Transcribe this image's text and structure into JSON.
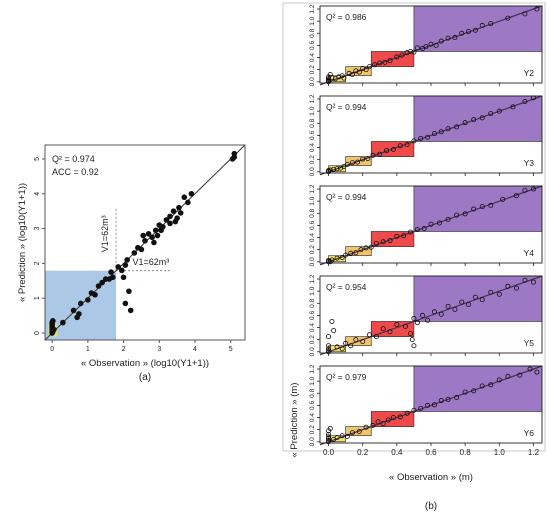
{
  "palette": {
    "blue_box": "#8fb6dd",
    "yellow_box": "#f2e266",
    "orange_box": "#f1c46a",
    "red_box": "#ee4a4a",
    "purple_box": "#9d78c4",
    "line": "#4a2f55",
    "frame": "#555555"
  },
  "chart_data": [
    {
      "type": "scatter",
      "panel": "(a)",
      "xlabel": "« Observation » (log10(Y1+1))",
      "ylabel": "« Prediction » (log10(Y1+1))",
      "xlim": [
        -0.2,
        5.4
      ],
      "ylim": [
        -0.2,
        5.4
      ],
      "xticks": [
        0,
        1,
        2,
        3,
        4,
        5
      ],
      "yticks": [
        0,
        1,
        2,
        3,
        4,
        5
      ],
      "stats": [
        "Q² = 0.974",
        "ACC = 0.92"
      ],
      "threshold": {
        "value": 1.79,
        "label_x": "V1=62m³",
        "label_y": "V1=62m³"
      },
      "series": [
        {
          "values": [
            [
              0,
              0
            ],
            [
              0,
              0.05
            ],
            [
              0,
              0.1
            ],
            [
              0,
              0.15
            ],
            [
              0,
              0.2
            ],
            [
              0,
              0.25
            ],
            [
              0,
              0.3
            ],
            [
              0.02,
              0.05
            ],
            [
              0.05,
              0.1
            ],
            [
              0.02,
              0.35
            ],
            [
              0.3,
              0.3
            ],
            [
              0.6,
              0.65
            ],
            [
              0.8,
              0.85
            ],
            [
              0.7,
              0.45
            ],
            [
              0.75,
              0.55
            ],
            [
              1.0,
              0.95
            ],
            [
              1.1,
              1.15
            ],
            [
              1.2,
              1.1
            ],
            [
              1.3,
              1.35
            ],
            [
              1.4,
              1.45
            ],
            [
              1.5,
              1.55
            ],
            [
              1.6,
              1.55
            ],
            [
              1.7,
              1.6
            ],
            [
              1.65,
              1.75
            ],
            [
              1.85,
              1.9
            ],
            [
              1.95,
              1.8
            ],
            [
              2.0,
              1.6
            ],
            [
              2.05,
              1.95
            ],
            [
              2.1,
              2.1
            ],
            [
              2.15,
              1.2
            ],
            [
              2.05,
              0.85
            ],
            [
              2.2,
              0.65
            ],
            [
              2.3,
              2.3
            ],
            [
              2.4,
              2.45
            ],
            [
              2.5,
              2.4
            ],
            [
              2.6,
              2.65
            ],
            [
              2.55,
              2.8
            ],
            [
              2.7,
              2.85
            ],
            [
              2.8,
              2.75
            ],
            [
              2.85,
              2.6
            ],
            [
              2.9,
              2.95
            ],
            [
              3.0,
              3.1
            ],
            [
              3.05,
              2.95
            ],
            [
              3.1,
              3.05
            ],
            [
              3.2,
              3.25
            ],
            [
              3.3,
              3.15
            ],
            [
              3.3,
              3.35
            ],
            [
              3.4,
              3.5
            ],
            [
              3.45,
              3.2
            ],
            [
              3.55,
              3.6
            ],
            [
              3.6,
              3.45
            ],
            [
              3.7,
              3.9
            ],
            [
              3.8,
              3.75
            ],
            [
              3.9,
              4.0
            ],
            [
              3.5,
              3.3
            ],
            [
              2.95,
              2.8
            ],
            [
              5.05,
              5.0
            ],
            [
              5.1,
              5.15
            ],
            [
              5.1,
              5.05
            ]
          ]
        }
      ]
    },
    {
      "type": "scatter",
      "panel": "(b)",
      "xlabel": "« Observation » (m)",
      "ylabel": "« Prediction » (m)",
      "xlim": [
        -0.05,
        1.25
      ],
      "ylim": [
        -0.02,
        1.25
      ],
      "xticks": [
        "0.0",
        "0.2",
        "0.4",
        "0.6",
        "0.8",
        "1.0",
        "1.2"
      ],
      "yticks": [
        "0.0",
        "0.2",
        "0.4",
        "0.6",
        "0.8",
        "1.0",
        "1.2"
      ],
      "class_bounds": [
        0,
        0.1,
        0.25,
        0.5
      ],
      "panels": [
        {
          "name": "Y2",
          "stat": "Q² = 0.986",
          "points": [
            [
              0,
              0
            ],
            [
              0,
              0.01
            ],
            [
              0,
              0.02
            ],
            [
              0,
              0.03
            ],
            [
              0,
              0.05
            ],
            [
              0,
              0.08
            ],
            [
              0.01,
              0.12
            ],
            [
              0.02,
              0.07
            ],
            [
              0.04,
              0.05
            ],
            [
              0.06,
              0.08
            ],
            [
              0.08,
              0.1
            ],
            [
              0.09,
              0.06
            ],
            [
              0.12,
              0.14
            ],
            [
              0.14,
              0.12
            ],
            [
              0.16,
              0.18
            ],
            [
              0.18,
              0.16
            ],
            [
              0.2,
              0.22
            ],
            [
              0.22,
              0.2
            ],
            [
              0.24,
              0.25
            ],
            [
              0.27,
              0.28
            ],
            [
              0.3,
              0.31
            ],
            [
              0.33,
              0.32
            ],
            [
              0.36,
              0.35
            ],
            [
              0.4,
              0.41
            ],
            [
              0.43,
              0.44
            ],
            [
              0.46,
              0.48
            ],
            [
              0.48,
              0.5
            ],
            [
              0.5,
              0.49
            ],
            [
              0.52,
              0.56
            ],
            [
              0.55,
              0.55
            ],
            [
              0.57,
              0.58
            ],
            [
              0.6,
              0.62
            ],
            [
              0.63,
              0.6
            ],
            [
              0.66,
              0.67
            ],
            [
              0.7,
              0.72
            ],
            [
              0.74,
              0.73
            ],
            [
              0.78,
              0.8
            ],
            [
              0.82,
              0.83
            ],
            [
              0.86,
              0.85
            ],
            [
              0.9,
              0.93
            ],
            [
              0.95,
              0.96
            ],
            [
              1.05,
              1.05
            ],
            [
              1.15,
              1.12
            ],
            [
              1.22,
              1.2
            ]
          ]
        },
        {
          "name": "Y3",
          "stat": "Q² = 0.994",
          "points": [
            [
              0,
              0
            ],
            [
              0,
              0.01
            ],
            [
              0,
              0.02
            ],
            [
              0.01,
              0.03
            ],
            [
              0.03,
              0.04
            ],
            [
              0.05,
              0.05
            ],
            [
              0.07,
              0.06
            ],
            [
              0.09,
              0.09
            ],
            [
              0.11,
              0.12
            ],
            [
              0.14,
              0.15
            ],
            [
              0.17,
              0.16
            ],
            [
              0.2,
              0.21
            ],
            [
              0.23,
              0.22
            ],
            [
              0.26,
              0.27
            ],
            [
              0.3,
              0.29
            ],
            [
              0.34,
              0.35
            ],
            [
              0.38,
              0.37
            ],
            [
              0.42,
              0.43
            ],
            [
              0.46,
              0.45
            ],
            [
              0.5,
              0.51
            ],
            [
              0.54,
              0.55
            ],
            [
              0.58,
              0.57
            ],
            [
              0.62,
              0.63
            ],
            [
              0.66,
              0.66
            ],
            [
              0.7,
              0.71
            ],
            [
              0.75,
              0.74
            ],
            [
              0.8,
              0.81
            ],
            [
              0.85,
              0.86
            ],
            [
              0.9,
              0.89
            ],
            [
              0.95,
              0.96
            ],
            [
              1.0,
              1.0
            ],
            [
              1.08,
              1.07
            ],
            [
              1.15,
              1.16
            ],
            [
              1.2,
              1.22
            ]
          ]
        },
        {
          "name": "Y4",
          "stat": "Q² = 0.994",
          "points": [
            [
              0,
              0
            ],
            [
              0,
              0.01
            ],
            [
              0,
              0.02
            ],
            [
              0.01,
              0.0
            ],
            [
              0.02,
              0.03
            ],
            [
              0.05,
              0.06
            ],
            [
              0.08,
              0.07
            ],
            [
              0.1,
              0.11
            ],
            [
              0.13,
              0.14
            ],
            [
              0.16,
              0.15
            ],
            [
              0.19,
              0.2
            ],
            [
              0.22,
              0.23
            ],
            [
              0.25,
              0.24
            ],
            [
              0.28,
              0.3
            ],
            [
              0.32,
              0.33
            ],
            [
              0.36,
              0.35
            ],
            [
              0.4,
              0.42
            ],
            [
              0.44,
              0.43
            ],
            [
              0.48,
              0.49
            ],
            [
              0.52,
              0.53
            ],
            [
              0.56,
              0.55
            ],
            [
              0.6,
              0.62
            ],
            [
              0.65,
              0.64
            ],
            [
              0.7,
              0.7
            ],
            [
              0.75,
              0.77
            ],
            [
              0.8,
              0.79
            ],
            [
              0.85,
              0.87
            ],
            [
              0.9,
              0.91
            ],
            [
              0.95,
              0.93
            ],
            [
              1.02,
              1.03
            ],
            [
              1.1,
              1.09
            ],
            [
              1.15,
              1.18
            ],
            [
              1.2,
              1.2
            ]
          ]
        },
        {
          "name": "Y5",
          "stat": "Q² = 0.954",
          "points": [
            [
              0,
              0
            ],
            [
              0,
              0.02
            ],
            [
              0,
              0.05
            ],
            [
              0,
              0.1
            ],
            [
              0,
              0.25
            ],
            [
              0.02,
              0.5
            ],
            [
              0.03,
              0.35
            ],
            [
              0.05,
              0.08
            ],
            [
              0.08,
              0.05
            ],
            [
              0.1,
              0.14
            ],
            [
              0.13,
              0.1
            ],
            [
              0.16,
              0.2
            ],
            [
              0.2,
              0.17
            ],
            [
              0.24,
              0.28
            ],
            [
              0.28,
              0.25
            ],
            [
              0.32,
              0.38
            ],
            [
              0.36,
              0.33
            ],
            [
              0.4,
              0.45
            ],
            [
              0.45,
              0.42
            ],
            [
              0.48,
              0.3
            ],
            [
              0.49,
              0.2
            ],
            [
              0.5,
              0.1
            ],
            [
              0.5,
              0.55
            ],
            [
              0.52,
              0.48
            ],
            [
              0.55,
              0.6
            ],
            [
              0.58,
              0.52
            ],
            [
              0.62,
              0.66
            ],
            [
              0.66,
              0.62
            ],
            [
              0.7,
              0.75
            ],
            [
              0.74,
              0.7
            ],
            [
              0.78,
              0.82
            ],
            [
              0.82,
              0.78
            ],
            [
              0.86,
              0.9
            ],
            [
              0.9,
              0.86
            ],
            [
              0.95,
              0.98
            ],
            [
              1.0,
              0.95
            ],
            [
              1.05,
              1.08
            ],
            [
              1.1,
              1.05
            ],
            [
              1.15,
              1.18
            ],
            [
              1.2,
              1.15
            ]
          ]
        },
        {
          "name": "Y6",
          "stat": "Q² = 0.979",
          "points": [
            [
              0,
              0
            ],
            [
              0,
              0.02
            ],
            [
              0,
              0.05
            ],
            [
              0,
              0.08
            ],
            [
              0,
              0.12
            ],
            [
              0,
              0.18
            ],
            [
              0.01,
              0.22
            ],
            [
              0.03,
              0.04
            ],
            [
              0.05,
              0.07
            ],
            [
              0.08,
              0.1
            ],
            [
              0.11,
              0.09
            ],
            [
              0.14,
              0.15
            ],
            [
              0.18,
              0.17
            ],
            [
              0.22,
              0.24
            ],
            [
              0.26,
              0.27
            ],
            [
              0.29,
              0.33
            ],
            [
              0.32,
              0.3
            ],
            [
              0.35,
              0.36
            ],
            [
              0.38,
              0.4
            ],
            [
              0.42,
              0.41
            ],
            [
              0.46,
              0.47
            ],
            [
              0.5,
              0.52
            ],
            [
              0.54,
              0.55
            ],
            [
              0.58,
              0.6
            ],
            [
              0.62,
              0.61
            ],
            [
              0.66,
              0.68
            ],
            [
              0.7,
              0.7
            ],
            [
              0.75,
              0.73
            ],
            [
              0.8,
              0.82
            ],
            [
              0.85,
              0.84
            ],
            [
              0.9,
              0.92
            ],
            [
              0.95,
              0.94
            ],
            [
              1.0,
              1.02
            ],
            [
              1.05,
              1.08
            ],
            [
              1.12,
              1.1
            ],
            [
              1.18,
              1.2
            ],
            [
              1.22,
              1.15
            ]
          ]
        }
      ]
    }
  ]
}
